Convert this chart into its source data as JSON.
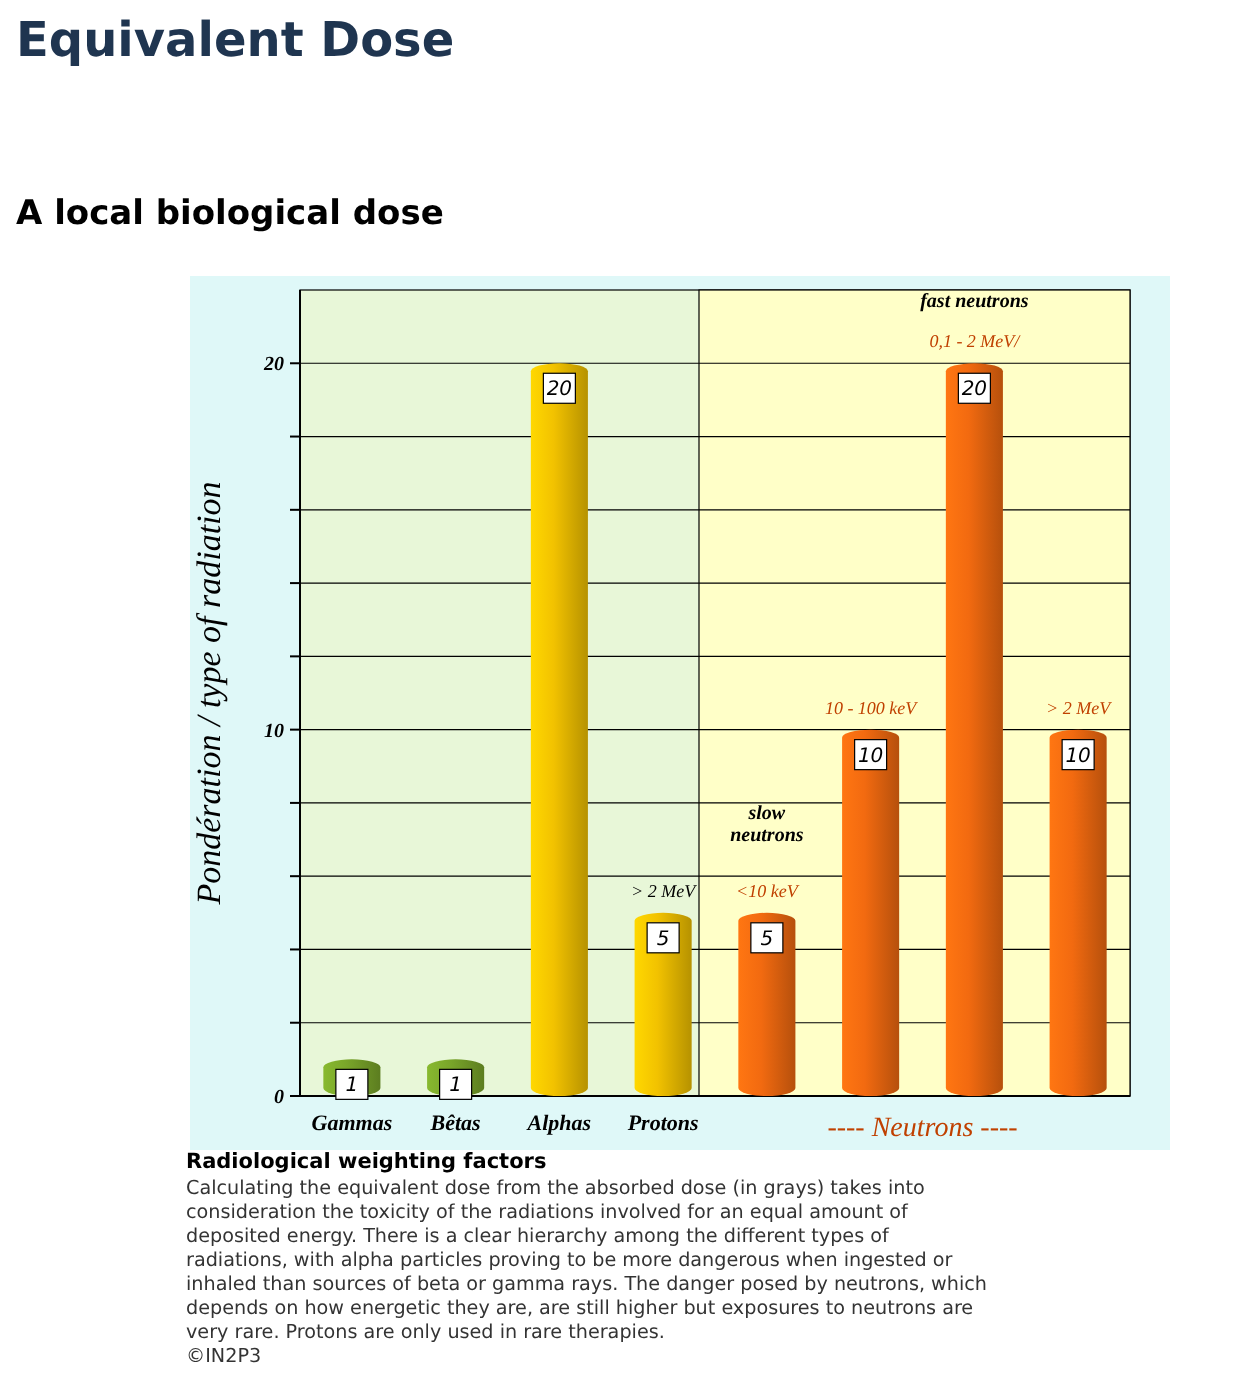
{
  "chart_data": {
    "type": "bar",
    "title": "Equivalent Dose",
    "subtitle": "A local biological dose",
    "ylabel": "Pondération / type of radiation",
    "categories": [
      "Gammas",
      "Bêtas",
      "Alphas",
      "Protons",
      null,
      null,
      null,
      null
    ],
    "values": [
      1,
      1,
      20,
      5,
      5,
      10,
      20,
      10
    ],
    "colors": [
      "#7aa62a",
      "#7aa62a",
      "#f2c200",
      "#f2c200",
      "#f26a10",
      "#f26a10",
      "#f26a10",
      "#f26a10"
    ],
    "ylim": [
      0,
      22
    ],
    "yticks": [
      0,
      {
        "value": 2,
        "label": null
      },
      {
        "value": 4,
        "label": null
      },
      {
        "value": 6,
        "label": null
      },
      {
        "value": 8,
        "label": null
      },
      10,
      {
        "value": 12,
        "label": null
      },
      {
        "value": 14,
        "label": null
      },
      {
        "value": 16,
        "label": null
      },
      {
        "value": 18,
        "label": null
      },
      20
    ],
    "grid": "y",
    "data_labels": true,
    "annotations": [
      "> 2 MeV",
      "slow neutrons",
      "<10 keV",
      "10 - 100 keV",
      "fast neutrons",
      "0,1 - 2 MeV/",
      "> 2 MeV",
      "---- Neutrons ----",
      "Radiological weighting factors",
      "Calculating the equivalent dose from the absorbed dose (in grays) takes into consideration the toxicity of the radiations involved for an equal amount of deposited energy. There is a clear hierarchy among the different types of radiations, with alpha particles proving to be more dangerous when ingested or inhaled than sources of beta or gamma rays. The danger posed by neutrons, which depends on how energetic they are, are still higher but exposures to neutrons are very rare. Protons are only used in rare therapies.",
      "©IN2P3"
    ]
  }
}
